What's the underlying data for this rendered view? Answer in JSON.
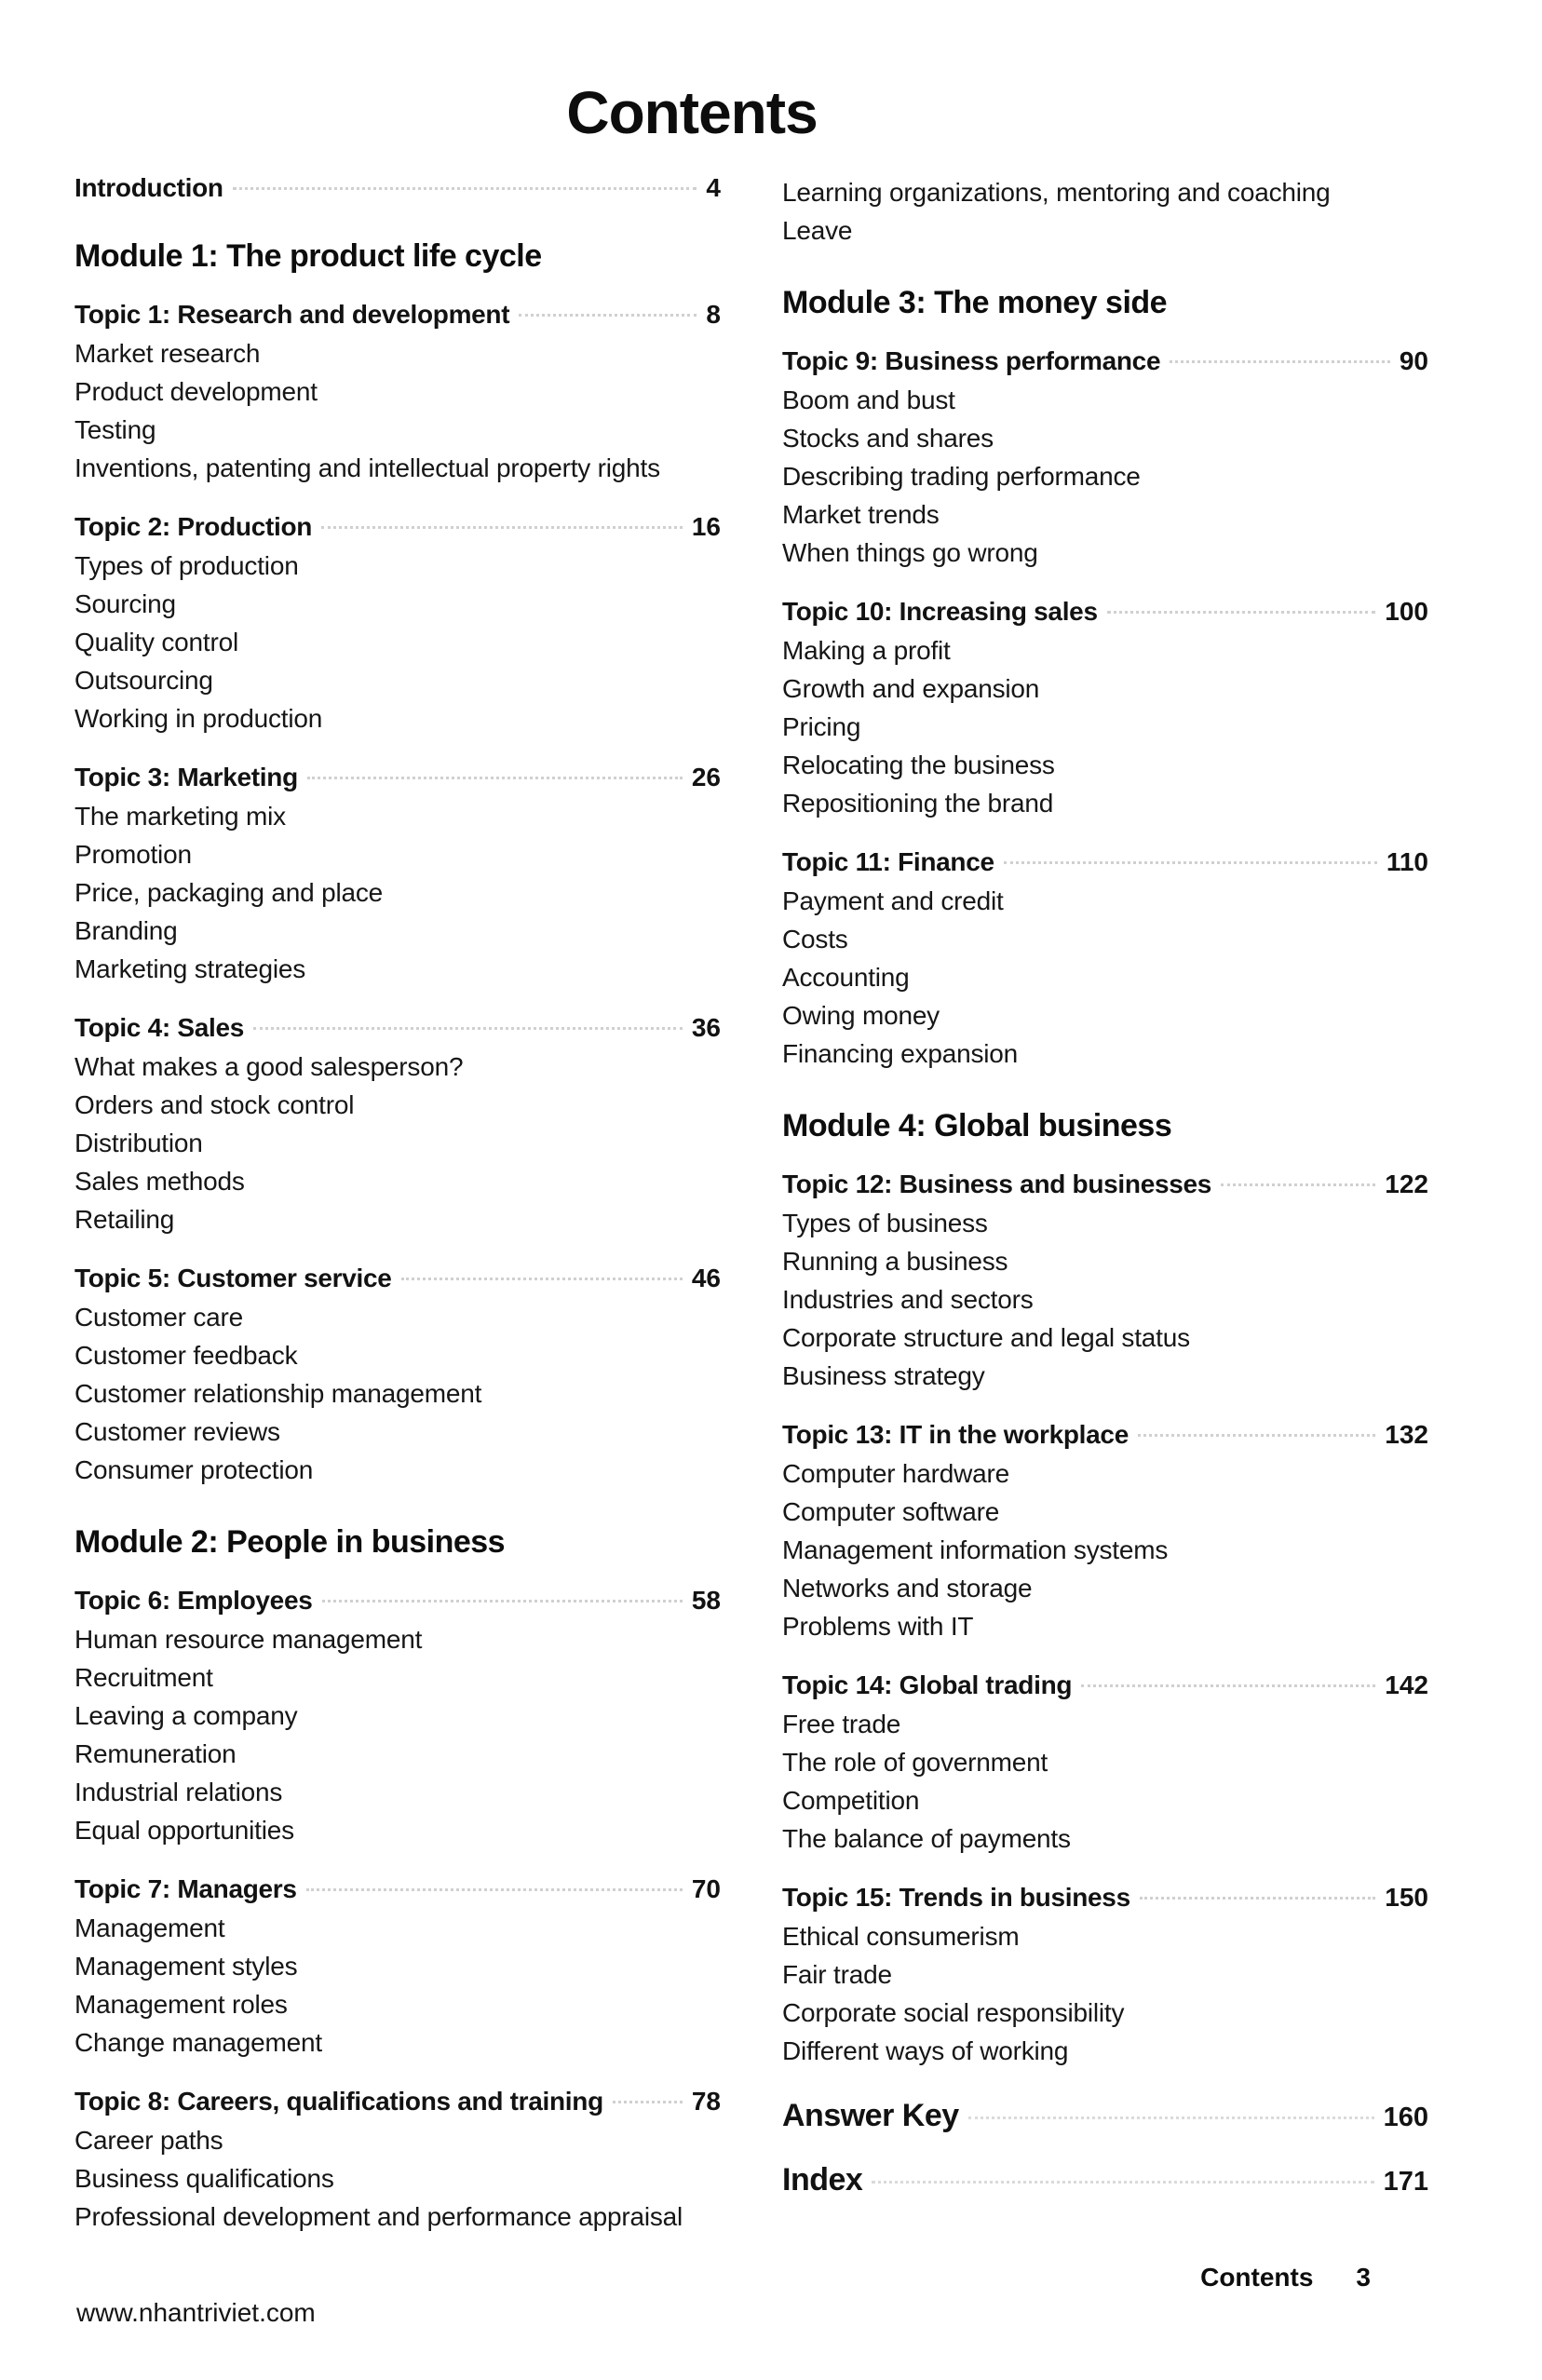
{
  "page_title": "Contents",
  "footer": {
    "website": "www.nhantriviet.com",
    "section": "Contents",
    "page_number": "3"
  },
  "columns": [
    {
      "blocks": [
        {
          "type": "intro",
          "label": "Introduction",
          "page": "4"
        },
        {
          "type": "module",
          "label": "Module 1: The product life cycle"
        },
        {
          "type": "topic",
          "label": "Topic 1: Research and development",
          "page": "8",
          "items": [
            "Market research",
            "Product development",
            "Testing",
            "Inventions, patenting and intellectual property rights"
          ]
        },
        {
          "type": "topic",
          "label": "Topic 2: Production",
          "page": "16",
          "items": [
            "Types of production",
            "Sourcing",
            "Quality control",
            "Outsourcing",
            "Working in production"
          ]
        },
        {
          "type": "topic",
          "label": "Topic 3: Marketing",
          "page": "26",
          "items": [
            "The marketing mix",
            "Promotion",
            "Price, packaging and place",
            "Branding",
            "Marketing strategies"
          ]
        },
        {
          "type": "topic",
          "label": "Topic 4: Sales",
          "page": "36",
          "items": [
            "What makes a good salesperson?",
            "Orders and stock control",
            "Distribution",
            "Sales methods",
            "Retailing"
          ]
        },
        {
          "type": "topic",
          "label": "Topic 5: Customer service",
          "page": "46",
          "items": [
            "Customer care",
            "Customer feedback",
            "Customer relationship management",
            "Customer reviews",
            "Consumer protection"
          ]
        },
        {
          "type": "module",
          "label": "Module 2: People in business"
        },
        {
          "type": "topic",
          "label": "Topic 6: Employees",
          "page": "58",
          "items": [
            "Human resource management",
            "Recruitment",
            "Leaving a company",
            "Remuneration",
            "Industrial relations",
            "Equal opportunities"
          ]
        },
        {
          "type": "topic",
          "label": "Topic 7: Managers",
          "page": "70",
          "items": [
            "Management",
            "Management styles",
            "Management roles",
            "Change management"
          ]
        },
        {
          "type": "topic",
          "label": "Topic 8: Careers, qualifications and training",
          "page": "78",
          "items": [
            "Career paths",
            "Business qualifications",
            "Professional development and performance appraisal"
          ]
        }
      ]
    },
    {
      "blocks": [
        {
          "type": "items",
          "items": [
            "Learning organizations, mentoring and coaching",
            "Leave"
          ]
        },
        {
          "type": "module",
          "label": "Module 3: The money side"
        },
        {
          "type": "topic",
          "label": "Topic 9: Business performance",
          "page": "90",
          "items": [
            "Boom and bust",
            "Stocks and shares",
            "Describing trading performance",
            "Market trends",
            "When things go wrong"
          ]
        },
        {
          "type": "topic",
          "label": "Topic 10: Increasing sales",
          "page": "100",
          "items": [
            "Making a profit",
            "Growth and expansion",
            "Pricing",
            "Relocating the business",
            "Repositioning the brand"
          ]
        },
        {
          "type": "topic",
          "label": "Topic 11: Finance",
          "page": "110",
          "items": [
            "Payment and credit",
            "Costs",
            "Accounting",
            "Owing money",
            "Financing expansion"
          ]
        },
        {
          "type": "module",
          "label": "Module 4: Global business"
        },
        {
          "type": "topic",
          "label": "Topic 12: Business and businesses",
          "page": "122",
          "items": [
            "Types of business",
            "Running a business",
            "Industries and sectors",
            "Corporate structure and legal status",
            "Business strategy"
          ]
        },
        {
          "type": "topic",
          "label": "Topic 13: IT in the workplace",
          "page": "132",
          "items": [
            "Computer hardware",
            "Computer software",
            "Management information systems",
            "Networks and storage",
            "Problems with IT"
          ]
        },
        {
          "type": "topic",
          "label": "Topic 14: Global trading",
          "page": "142",
          "items": [
            "Free trade",
            "The role of government",
            "Competition",
            "The balance of payments"
          ]
        },
        {
          "type": "topic",
          "label": "Topic 15: Trends in business",
          "page": "150",
          "items": [
            "Ethical consumerism",
            "Fair trade",
            "Corporate social responsibility",
            "Different ways of working"
          ]
        },
        {
          "type": "big",
          "label": "Answer Key",
          "page": "160"
        },
        {
          "type": "big",
          "label": "Index",
          "page": "171"
        }
      ]
    }
  ]
}
